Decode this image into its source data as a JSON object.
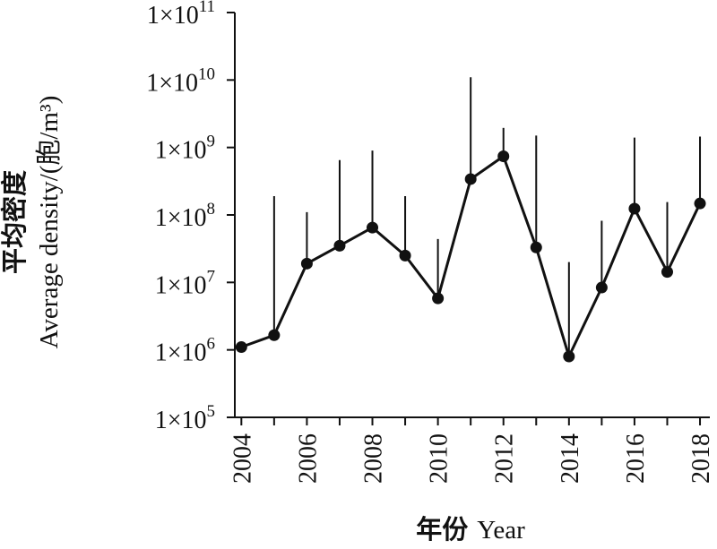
{
  "chart_data": {
    "type": "line",
    "xlabel_cn": "年份",
    "xlabel_en": "Year",
    "ylabel_cn": "平均密度",
    "ylabel_en": "Average density/(胞/m³)",
    "y_scale": "log",
    "ylim": [
      100000,
      100000000000
    ],
    "y_ticks": [
      {
        "mant": "1×10",
        "exp": "5"
      },
      {
        "mant": "1×10",
        "exp": "6"
      },
      {
        "mant": "1×10",
        "exp": "7"
      },
      {
        "mant": "1×10",
        "exp": "8"
      },
      {
        "mant": "1×10",
        "exp": "9"
      },
      {
        "mant": "1×10",
        "exp": "10"
      },
      {
        "mant": "1×10",
        "exp": "11"
      }
    ],
    "xlim": [
      2003.8,
      2018.3
    ],
    "x_tick_labels": [
      "2004",
      "2006",
      "2008",
      "2010",
      "2012",
      "2014",
      "2016",
      "2018"
    ],
    "x": [
      2004,
      2005,
      2006,
      2007,
      2008,
      2009,
      2010,
      2011,
      2012,
      2013,
      2014,
      2015,
      2016,
      2017,
      2018
    ],
    "values": [
      1100000,
      1650000,
      19000000,
      35000000,
      65000000,
      25000000,
      5800000,
      340000000,
      740000000,
      33000000,
      800000,
      8400000,
      124000000,
      14300000,
      148000000
    ],
    "error_upper": [
      null,
      190000000,
      110000000,
      650000000,
      900000000,
      190000000,
      44000000,
      11000000000,
      1950000000,
      1500000000,
      20000000,
      82000000,
      1400000000,
      155000000,
      1450000000
    ],
    "grid": false,
    "legend": "none",
    "colors": {
      "line": "#111111",
      "marker": "#111111",
      "axis": "#111111"
    }
  }
}
